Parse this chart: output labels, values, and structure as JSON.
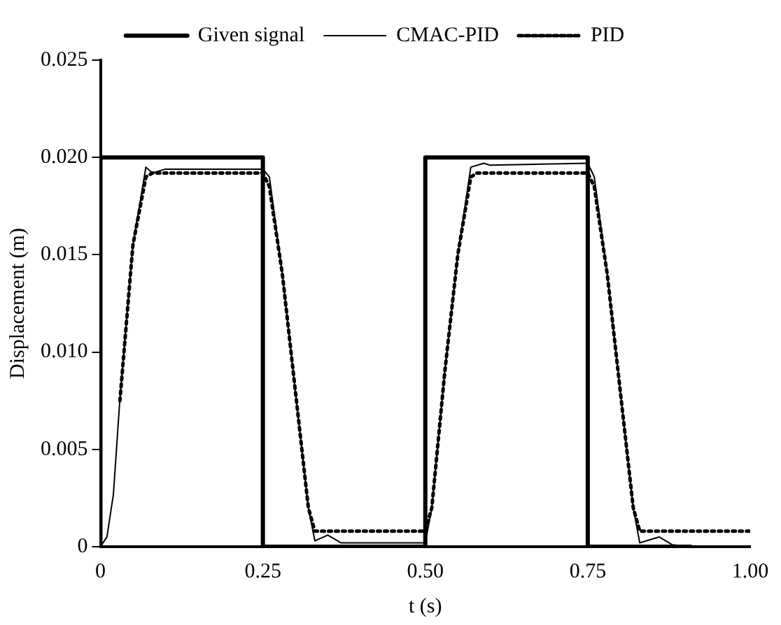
{
  "chart_data": {
    "type": "line",
    "xlabel": "t (s)",
    "ylabel": "Displacement (m)",
    "xlim": [
      0,
      1
    ],
    "ylim": [
      0,
      0.025
    ],
    "xticks": [
      0,
      0.25,
      {
        "value": 0.5,
        "label": "0.50"
      },
      0.75,
      {
        "value": 1,
        "label": "1.00"
      }
    ],
    "yticks": [
      0,
      0.005,
      {
        "value": 0.01,
        "label": "0.010"
      },
      0.015,
      {
        "value": 0.02,
        "label": "0.020"
      },
      0.025
    ],
    "grid": false,
    "legend": "top",
    "marker": "none",
    "series": [
      {
        "name": "Given signal",
        "color": "#000000",
        "line_style": "solid",
        "x": [
          0,
          0,
          0.25,
          0.25,
          0.5,
          0.5,
          0.75,
          0.75,
          0.91
        ],
        "values": [
          0,
          0.02,
          0.02,
          0,
          0,
          0.02,
          0.02,
          0,
          0
        ]
      },
      {
        "name": "CMAC-PID",
        "color": "#000000",
        "line_style": "solid",
        "x": [
          0,
          0.01,
          0.02,
          0.03,
          0.05,
          0.07,
          0.08,
          0.1,
          0.25,
          0.26,
          0.28,
          0.3,
          0.32,
          0.33,
          0.35,
          0.37,
          0.5,
          0.51,
          0.53,
          0.55,
          0.57,
          0.59,
          0.6,
          0.75,
          0.76,
          0.78,
          0.8,
          0.82,
          0.83,
          0.86,
          0.88,
          0.91
        ],
        "values": [
          0,
          0.0005,
          0.0027,
          0.0076,
          0.0155,
          0.0195,
          0.0192,
          0.0194,
          0.0194,
          0.019,
          0.014,
          0.008,
          0.002,
          0.0003,
          0.0006,
          0.0002,
          0.0002,
          0.002,
          0.009,
          0.015,
          0.0195,
          0.0197,
          0.0196,
          0.0197,
          0.019,
          0.014,
          0.008,
          0.002,
          0.0002,
          0.0005,
          0.0001,
          0
        ]
      },
      {
        "name": "PID",
        "color": "#000000",
        "line_style": "dotted",
        "x": [
          0.03,
          0.05,
          0.07,
          0.08,
          0.25,
          0.26,
          0.28,
          0.3,
          0.32,
          0.33,
          0.5,
          0.51,
          0.53,
          0.55,
          0.57,
          0.58,
          0.75,
          0.76,
          0.78,
          0.8,
          0.82,
          0.83,
          1
        ],
        "values": [
          0.0075,
          0.0155,
          0.019,
          0.0192,
          0.0192,
          0.0185,
          0.014,
          0.008,
          0.002,
          0.0008,
          0.0008,
          0.002,
          0.009,
          0.015,
          0.019,
          0.0192,
          0.0192,
          0.0185,
          0.014,
          0.008,
          0.002,
          0.0008,
          0.0008
        ]
      }
    ]
  }
}
